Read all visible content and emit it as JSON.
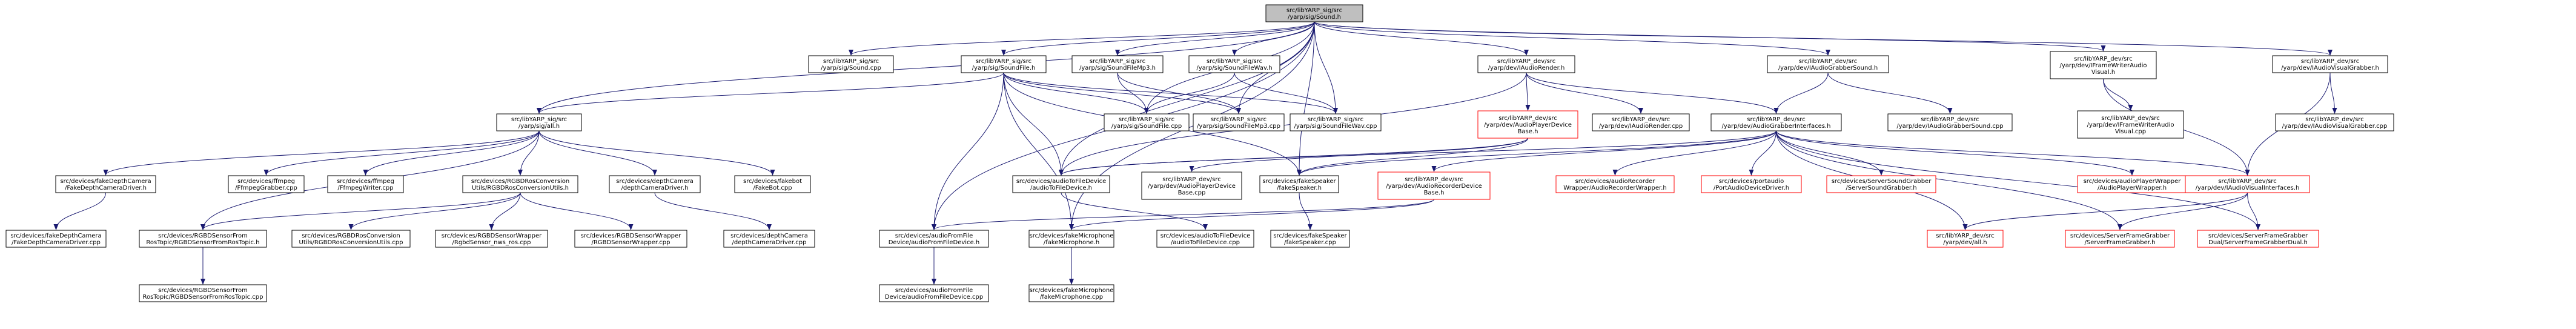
{
  "colors": {
    "edge": "#191970",
    "node_fill": "#ffffff",
    "node_border": "#000000",
    "node_border_missing": "#ff0000",
    "root_fill": "#bfbfbf",
    "root_border": "#000000"
  },
  "nodes": [
    {
      "id": "root",
      "label": [
        "src/libYARP_sig/src",
        "/yarp/sig/Sound.h"
      ],
      "variant": "root"
    },
    {
      "id": "sound_cpp",
      "label": [
        "src/libYARP_sig/src",
        "/yarp/sig/Sound.cpp"
      ]
    },
    {
      "id": "soundfile_h",
      "label": [
        "src/libYARP_sig/src",
        "/yarp/sig/SoundFile.h"
      ]
    },
    {
      "id": "soundfilemp3_h",
      "label": [
        "src/libYARP_sig/src",
        "/yarp/sig/SoundFileMp3.h"
      ]
    },
    {
      "id": "soundfilewav_h",
      "label": [
        "src/libYARP_sig/src",
        "/yarp/sig/SoundFileWav.h"
      ]
    },
    {
      "id": "iaudiorender_h",
      "label": [
        "src/libYARP_dev/src",
        "/yarp/dev/IAudioRender.h"
      ]
    },
    {
      "id": "iaudiograbbersound_h",
      "label": [
        "src/libYARP_dev/src",
        "/yarp/dev/IAudioGrabberSound.h"
      ]
    },
    {
      "id": "iframewriteraudiovisual_h",
      "label": [
        "src/libYARP_dev/src",
        "/yarp/dev/IFrameWriterAudio",
        "Visual.h"
      ]
    },
    {
      "id": "iaudiovisualgrabber_h",
      "label": [
        "src/libYARP_dev/src",
        "/yarp/dev/IAudioVisualGrabber.h"
      ]
    },
    {
      "id": "sig_all_h",
      "label": [
        "src/libYARP_sig/src",
        "/yarp/sig/all.h"
      ]
    },
    {
      "id": "soundfile_cpp",
      "label": [
        "src/libYARP_sig/src",
        "/yarp/sig/SoundFile.cpp"
      ]
    },
    {
      "id": "soundfilemp3_cpp",
      "label": [
        "src/libYARP_sig/src",
        "/yarp/sig/SoundFileMp3.cpp"
      ]
    },
    {
      "id": "soundfilewav_cpp",
      "label": [
        "src/libYARP_sig/src",
        "/yarp/sig/SoundFileWav.cpp"
      ]
    },
    {
      "id": "audioplayerdevicebase_h",
      "label": [
        "src/libYARP_dev/src",
        "/yarp/dev/AudioPlayerDevice",
        "Base.h"
      ],
      "variant": "missing"
    },
    {
      "id": "iaudiorender_cpp",
      "label": [
        "src/libYARP_dev/src",
        "/yarp/dev/IAudioRender.cpp"
      ]
    },
    {
      "id": "audiograbberinterfaces_h",
      "label": [
        "src/libYARP_dev/src",
        "/yarp/dev/AudioGrabberInterfaces.h"
      ]
    },
    {
      "id": "iaudiograbbersound_cpp",
      "label": [
        "src/libYARP_dev/src",
        "/yarp/dev/IAudioGrabberSound.cpp"
      ]
    },
    {
      "id": "iframewriteraudiovisual_cpp",
      "label": [
        "src/libYARP_dev/src",
        "/yarp/dev/IFrameWriterAudio",
        "Visual.cpp"
      ]
    },
    {
      "id": "iaudiovisualgrabber_cpp",
      "label": [
        "src/libYARP_dev/src",
        "/yarp/dev/IAudioVisualGrabber.cpp"
      ]
    },
    {
      "id": "fakedepthcameradriver_h",
      "label": [
        "src/devices/fakeDepthCamera",
        "/FakeDepthCameraDriver.h"
      ]
    },
    {
      "id": "ffmpeggrabber_cpp",
      "label": [
        "src/devices/ffmpeg",
        "/FfmpegGrabber.cpp"
      ]
    },
    {
      "id": "ffmpegwriter_cpp",
      "label": [
        "src/devices/ffmpeg",
        "/FfmpegWriter.cpp"
      ]
    },
    {
      "id": "rgbdrosconversionutils_h",
      "label": [
        "src/devices/RGBDRosConversion",
        "Utils/RGBDRosConversionUtils.h"
      ]
    },
    {
      "id": "depthcameradriver_h",
      "label": [
        "src/devices/depthCamera",
        "/depthCameraDriver.h"
      ]
    },
    {
      "id": "fakebot_cpp",
      "label": [
        "src/devices/fakebot",
        "/FakeBot.cpp"
      ]
    },
    {
      "id": "audiotofiledevice_h",
      "label": [
        "src/devices/audioToFileDevice",
        "/audioToFileDevice.h"
      ]
    },
    {
      "id": "audioplayerdevicebase_cpp",
      "label": [
        "src/libYARP_dev/src",
        "/yarp/dev/AudioPlayerDevice",
        "Base.cpp"
      ]
    },
    {
      "id": "fakespeaker_h",
      "label": [
        "src/devices/fakeSpeaker",
        "/fakeSpeaker.h"
      ]
    },
    {
      "id": "audiorecorderdevicebase_h",
      "label": [
        "src/libYARP_dev/src",
        "/yarp/dev/AudioRecorderDevice",
        "Base.h"
      ],
      "variant": "missing"
    },
    {
      "id": "audiorecorderwrapper_h",
      "label": [
        "src/devices/audioRecorder",
        "Wrapper/AudioRecorderWrapper.h"
      ],
      "variant": "missing"
    },
    {
      "id": "portaudiodevicedriver_h",
      "label": [
        "src/devices/portaudio",
        "/PortAudioDeviceDriver.h"
      ],
      "variant": "missing"
    },
    {
      "id": "serversoundgrabber_h",
      "label": [
        "src/devices/ServerSoundGrabber",
        "/ServerSoundGrabber.h"
      ],
      "variant": "missing"
    },
    {
      "id": "audioplayerwrapper_h",
      "label": [
        "src/devices/audioPlayerWrapper",
        "/AudioPlayerWrapper.h"
      ],
      "variant": "missing"
    },
    {
      "id": "iaudiovisualinterfaces_h",
      "label": [
        "src/libYARP_dev/src",
        "/yarp/dev/IAudioVisualInterfaces.h"
      ],
      "variant": "missing"
    },
    {
      "id": "fakedepthcameradriver_cpp",
      "label": [
        "src/devices/fakeDepthCamera",
        "/FakeDepthCameraDriver.cpp"
      ]
    },
    {
      "id": "rgbdsensorfromrostopic_h",
      "label": [
        "src/devices/RGBDSensorFrom",
        "RosTopic/RGBDSensorFromRosTopic.h"
      ]
    },
    {
      "id": "rgbdrosconversionutils_cpp",
      "label": [
        "src/devices/RGBDRosConversion",
        "Utils/RGBDRosConversionUtils.cpp"
      ]
    },
    {
      "id": "rgbdsensor_nws_ros_cpp",
      "label": [
        "src/devices/RGBDSensorWrapper",
        "/RgbdSensor_nws_ros.cpp"
      ]
    },
    {
      "id": "rgbdsensorwrapper_cpp",
      "label": [
        "src/devices/RGBDSensorWrapper",
        "/RGBDSensorWrapper.cpp"
      ]
    },
    {
      "id": "depthcameradriver_cpp",
      "label": [
        "src/devices/depthCamera",
        "/depthCameraDriver.cpp"
      ]
    },
    {
      "id": "audiofromfiledevice_h",
      "label": [
        "src/devices/audioFromFile",
        "Device/audioFromFileDevice.h"
      ]
    },
    {
      "id": "fakemicrophone_h",
      "label": [
        "src/devices/fakeMicrophone",
        "/fakeMicrophone.h"
      ]
    },
    {
      "id": "audiotofiledevice_cpp",
      "label": [
        "src/devices/audioToFileDevice",
        "/audioToFileDevice.cpp"
      ]
    },
    {
      "id": "fakespeaker_cpp",
      "label": [
        "src/devices/fakeSpeaker",
        "/fakeSpeaker.cpp"
      ]
    },
    {
      "id": "dev_all_h",
      "label": [
        "src/libYARP_dev/src",
        "/yarp/dev/all.h"
      ],
      "variant": "missing"
    },
    {
      "id": "serverframegrabber_h",
      "label": [
        "src/devices/ServerFrameGrabber",
        "/ServerFrameGrabber.h"
      ],
      "variant": "missing"
    },
    {
      "id": "serverframegrabberdual_h",
      "label": [
        "src/devices/ServerFrameGrabber",
        "Dual/ServerFrameGrabberDual.h"
      ],
      "variant": "missing"
    },
    {
      "id": "rgbdsensorfromrostopic_cpp",
      "label": [
        "src/devices/RGBDSensorFrom",
        "RosTopic/RGBDSensorFromRosTopic.cpp"
      ]
    },
    {
      "id": "audiofromfiledevice_cpp",
      "label": [
        "src/devices/audioFromFile",
        "Device/audioFromFileDevice.cpp"
      ]
    },
    {
      "id": "fakemicrophone_cpp",
      "label": [
        "src/devices/fakeMicrophone",
        "/fakeMicrophone.cpp"
      ]
    }
  ],
  "edges": [
    [
      "root",
      "sound_cpp"
    ],
    [
      "root",
      "soundfile_h"
    ],
    [
      "root",
      "soundfilemp3_h"
    ],
    [
      "root",
      "soundfilewav_h"
    ],
    [
      "root",
      "iaudiorender_h"
    ],
    [
      "root",
      "iaudiograbbersound_h"
    ],
    [
      "root",
      "iframewriteraudiovisual_h"
    ],
    [
      "root",
      "iaudiovisualgrabber_h"
    ],
    [
      "root",
      "sig_all_h"
    ],
    [
      "root",
      "soundfile_cpp"
    ],
    [
      "root",
      "soundfilemp3_cpp"
    ],
    [
      "root",
      "soundfilewav_cpp"
    ],
    [
      "root",
      "audiotofiledevice_h"
    ],
    [
      "root",
      "audiofromfiledevice_h"
    ],
    [
      "root",
      "fakemicrophone_h"
    ],
    [
      "root",
      "fakespeaker_h"
    ],
    [
      "soundfile_h",
      "sig_all_h"
    ],
    [
      "soundfile_h",
      "soundfile_cpp"
    ],
    [
      "soundfile_h",
      "soundfilemp3_cpp"
    ],
    [
      "soundfile_h",
      "soundfilewav_cpp"
    ],
    [
      "soundfile_h",
      "audiotofiledevice_h"
    ],
    [
      "soundfile_h",
      "fakespeaker_h"
    ],
    [
      "soundfile_h",
      "audiofromfiledevice_h"
    ],
    [
      "soundfile_h",
      "fakemicrophone_h"
    ],
    [
      "soundfilemp3_h",
      "soundfile_cpp"
    ],
    [
      "soundfilemp3_h",
      "soundfilemp3_cpp"
    ],
    [
      "soundfilewav_h",
      "soundfile_cpp"
    ],
    [
      "soundfilewav_h",
      "soundfilewav_cpp"
    ],
    [
      "iaudiorender_h",
      "audioplayerdevicebase_h"
    ],
    [
      "iaudiorender_h",
      "iaudiorender_cpp"
    ],
    [
      "iaudiorender_h",
      "audiograbberinterfaces_h"
    ],
    [
      "iaudiorender_h",
      "audiotofiledevice_h"
    ],
    [
      "iaudiograbbersound_h",
      "audiograbberinterfaces_h"
    ],
    [
      "iaudiograbbersound_h",
      "iaudiograbbersound_cpp"
    ],
    [
      "iframewriteraudiovisual_h",
      "iframewriteraudiovisual_cpp"
    ],
    [
      "iframewriteraudiovisual_h",
      "iaudiovisualinterfaces_h"
    ],
    [
      "iaudiovisualgrabber_h",
      "iaudiovisualgrabber_cpp"
    ],
    [
      "iaudiovisualgrabber_h",
      "iaudiovisualinterfaces_h"
    ],
    [
      "sig_all_h",
      "fakedepthcameradriver_h"
    ],
    [
      "sig_all_h",
      "ffmpeggrabber_cpp"
    ],
    [
      "sig_all_h",
      "ffmpegwriter_cpp"
    ],
    [
      "sig_all_h",
      "rgbdrosconversionutils_h"
    ],
    [
      "sig_all_h",
      "depthcameradriver_h"
    ],
    [
      "sig_all_h",
      "fakebot_cpp"
    ],
    [
      "sig_all_h",
      "rgbdsensorfromrostopic_h"
    ],
    [
      "audioplayerdevicebase_h",
      "audioplayerdevicebase_cpp"
    ],
    [
      "audioplayerdevicebase_h",
      "fakespeaker_h"
    ],
    [
      "audioplayerdevicebase_h",
      "audiotofiledevice_h"
    ],
    [
      "audiograbberinterfaces_h",
      "audiotofiledevice_h"
    ],
    [
      "audiograbberinterfaces_h",
      "audiorecorderdevicebase_h"
    ],
    [
      "audiograbberinterfaces_h",
      "audiorecorderwrapper_h"
    ],
    [
      "audiograbberinterfaces_h",
      "portaudiodevicedriver_h"
    ],
    [
      "audiograbberinterfaces_h",
      "serversoundgrabber_h"
    ],
    [
      "audiograbberinterfaces_h",
      "audioplayerwrapper_h"
    ],
    [
      "audiograbberinterfaces_h",
      "iaudiovisualinterfaces_h"
    ],
    [
      "audiograbberinterfaces_h",
      "dev_all_h"
    ],
    [
      "audiograbberinterfaces_h",
      "serverframegrabber_h"
    ],
    [
      "audiograbberinterfaces_h",
      "serverframegrabberdual_h"
    ],
    [
      "audiograbberinterfaces_h",
      "fakespeaker_h"
    ],
    [
      "audiorecorderdevicebase_h",
      "audiofromfiledevice_h"
    ],
    [
      "audiorecorderdevicebase_h",
      "fakemicrophone_h"
    ],
    [
      "iaudiovisualinterfaces_h",
      "dev_all_h"
    ],
    [
      "iaudiovisualinterfaces_h",
      "serverframegrabber_h"
    ],
    [
      "iaudiovisualinterfaces_h",
      "serverframegrabberdual_h"
    ],
    [
      "fakedepthcameradriver_h",
      "fakedepthcameradriver_cpp"
    ],
    [
      "rgbdrosconversionutils_h",
      "rgbdsensorfromrostopic_h"
    ],
    [
      "rgbdrosconversionutils_h",
      "rgbdrosconversionutils_cpp"
    ],
    [
      "rgbdrosconversionutils_h",
      "rgbdsensor_nws_ros_cpp"
    ],
    [
      "rgbdrosconversionutils_h",
      "rgbdsensorwrapper_cpp"
    ],
    [
      "depthcameradriver_h",
      "depthcameradriver_cpp"
    ],
    [
      "audiotofiledevice_h",
      "audiotofiledevice_cpp"
    ],
    [
      "fakespeaker_h",
      "fakespeaker_cpp"
    ],
    [
      "audiofromfiledevice_h",
      "audiofromfiledevice_cpp"
    ],
    [
      "fakemicrophone_h",
      "fakemicrophone_cpp"
    ],
    [
      "rgbdsensorfromrostopic_h",
      "rgbdsensorfromrostopic_cpp"
    ]
  ]
}
